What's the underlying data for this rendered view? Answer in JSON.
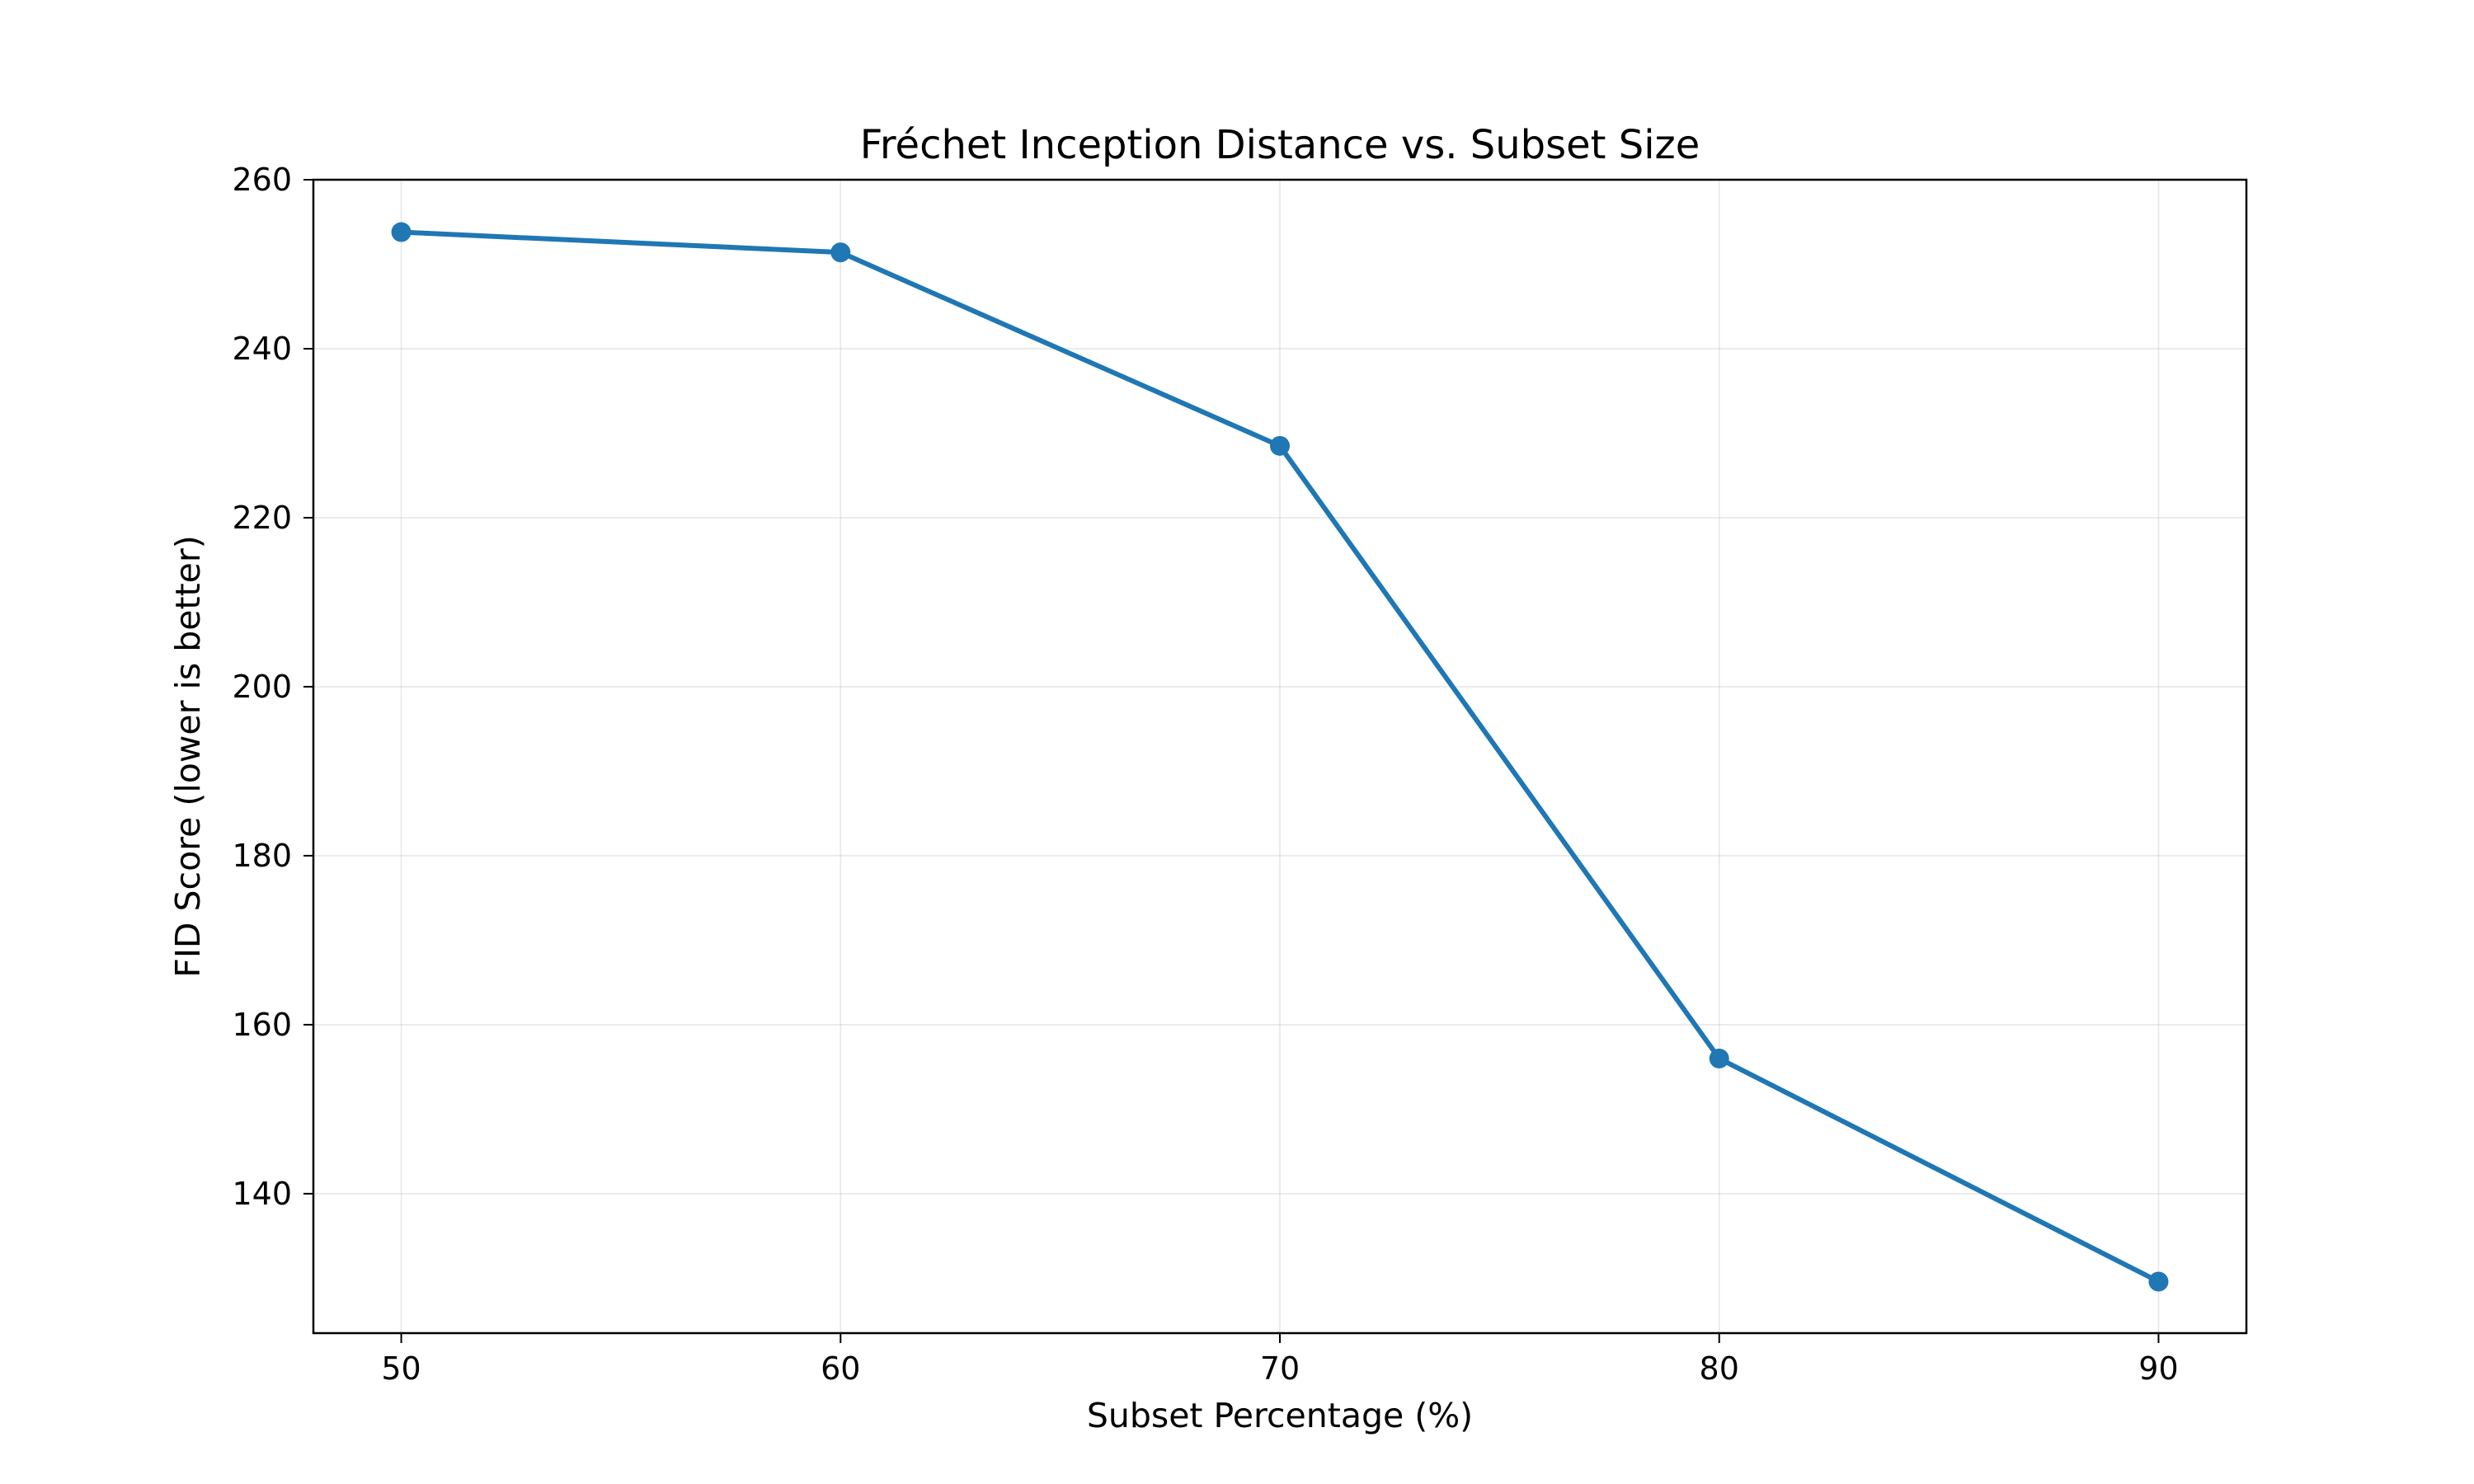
{
  "chart_data": {
    "type": "line",
    "title": "Fréchet Inception Distance vs. Subset Size",
    "xlabel": "Subset Percentage (%)",
    "ylabel": "FID Score (lower is better)",
    "x": [
      50,
      60,
      70,
      80,
      90
    ],
    "series": [
      {
        "values": [
          253.8,
          251.4,
          228.5,
          156.0,
          129.6
        ],
        "color": "#1f77b4",
        "marker": "circle"
      }
    ],
    "xticks": [
      50,
      60,
      70,
      80,
      90
    ],
    "yticks": [
      140,
      160,
      180,
      200,
      220,
      240,
      260
    ],
    "xlim": [
      48,
      92
    ],
    "ylim": [
      123.5,
      260
    ],
    "grid": true,
    "legend": "none"
  }
}
